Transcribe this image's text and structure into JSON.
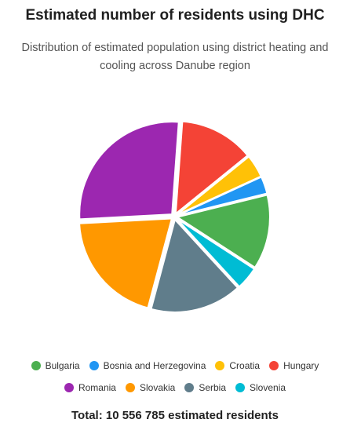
{
  "chart_data": {
    "type": "pie",
    "title": "Estimated number of residents using DHC",
    "subtitle": "Distribution of estimated population using district heating and cooling across Danube region",
    "legend_position": "bottom",
    "total_text": "Total: 10 556 785 estimated residents",
    "slices": [
      {
        "name": "Bulgaria",
        "value": 13,
        "color": "#4CAF50"
      },
      {
        "name": "Slovenia",
        "value": 4,
        "color": "#00BCD4"
      },
      {
        "name": "Serbia",
        "value": 16,
        "color": "#607D8B"
      },
      {
        "name": "Slovakia",
        "value": 20,
        "color": "#FF9800"
      },
      {
        "name": "Romania",
        "value": 27,
        "color": "#9C27B0"
      },
      {
        "name": "Hungary",
        "value": 13,
        "color": "#F44336"
      },
      {
        "name": "Croatia",
        "value": 4,
        "color": "#FFC107"
      },
      {
        "name": "Bosnia and Herzegovina",
        "value": 3,
        "color": "#2196F3"
      }
    ],
    "legend_order": [
      "Bulgaria",
      "Bosnia and Herzegovina",
      "Croatia",
      "Hungary",
      "Romania",
      "Slovakia",
      "Serbia",
      "Slovenia"
    ]
  }
}
